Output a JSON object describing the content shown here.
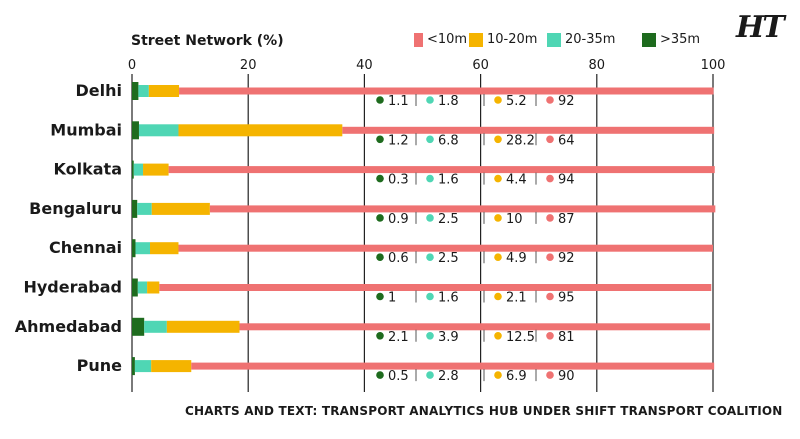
{
  "brand": "HT",
  "credit": "CHARTS AND TEXT: TRANSPORT ANALYTICS HUB UNDER SHIFT TRANSPORT COALITION",
  "colors": {
    "lt10": "#ef7272",
    "b10_20": "#f5b400",
    "b20_35": "#4fd6b4",
    "gt35": "#1e6b1e"
  },
  "chart_data": {
    "type": "bar",
    "stacked": true,
    "orientation": "horizontal",
    "title": "Street Network (%)",
    "xlim": [
      0,
      100
    ],
    "x_ticks": [
      "0",
      "20",
      "40",
      "60",
      "80",
      "100"
    ],
    "grid": true,
    "legend_position": "top-right",
    "categories": [
      "Delhi",
      "Mumbai",
      "Kolkata",
      "Bengaluru",
      "Chennai",
      "Hyderabad",
      "Ahmedabad",
      "Pune"
    ],
    "series": [
      {
        "name": ">35m",
        "key": "gt35",
        "values": [
          1.1,
          1.2,
          0.3,
          0.9,
          0.6,
          1,
          2.1,
          0.5
        ]
      },
      {
        "name": "20-35m",
        "key": "b20_35",
        "values": [
          1.8,
          6.8,
          1.6,
          2.5,
          2.5,
          1.6,
          3.9,
          2.8
        ]
      },
      {
        "name": "10-20m",
        "key": "b10_20",
        "values": [
          5.2,
          28.2,
          4.4,
          10,
          4.9,
          2.1,
          12.5,
          6.9
        ]
      },
      {
        "name": "<10m",
        "key": "lt10",
        "values": [
          92,
          64,
          94,
          87,
          92,
          95,
          81,
          90
        ]
      }
    ],
    "legend_order": [
      "<10m",
      "10-20m",
      "20-35m",
      ">35m"
    ]
  }
}
